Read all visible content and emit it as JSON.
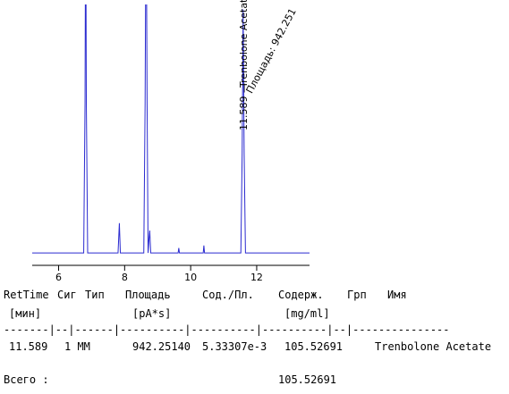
{
  "chart_data": {
    "type": "line",
    "x": [
      5.2,
      6.76,
      6.8,
      6.82,
      6.84,
      6.88,
      7.8,
      7.84,
      7.87,
      8.58,
      8.62,
      8.65,
      8.68,
      8.71,
      8.74,
      8.76,
      8.79,
      9.62,
      9.64,
      9.66,
      10.38,
      10.4,
      10.42,
      11.52,
      11.56,
      11.589,
      11.62,
      11.66,
      13.6
    ],
    "series": [
      {
        "color": "#2b2bd0",
        "values": [
          0,
          0,
          60,
          150,
          60,
          0,
          0,
          12,
          0,
          0,
          60,
          150,
          60,
          0,
          6,
          9,
          0,
          0,
          2,
          0,
          0,
          3,
          0,
          0,
          40,
          98,
          40,
          0,
          0
        ]
      }
    ],
    "xlim": [
      5.2,
      13.6
    ],
    "ylim": [
      -5,
      100
    ],
    "xticks": [
      6,
      8,
      10,
      12
    ],
    "peak_label": "11.589 —",
    "peak_name": "Trenbolone Acetate",
    "area_label": "Площадь: 942.251"
  },
  "report": {
    "header": [
      "RetTime",
      "Сиг",
      "Тип",
      "Площадь",
      "Сод./Пл.",
      "Содерж.",
      "Грп",
      "Имя"
    ],
    "units": [
      "[мин]",
      "[pA*s]",
      "[mg/ml]"
    ],
    "separator": "-------|--|------|----------|----------|----------|--|---------------",
    "rows": [
      [
        "11.589",
        "1 MM",
        "942.25140",
        "5.33307e-3",
        "105.52691",
        "Trenbolone Acetate"
      ]
    ],
    "total_label": "Всего :",
    "total_value": "105.52691"
  }
}
